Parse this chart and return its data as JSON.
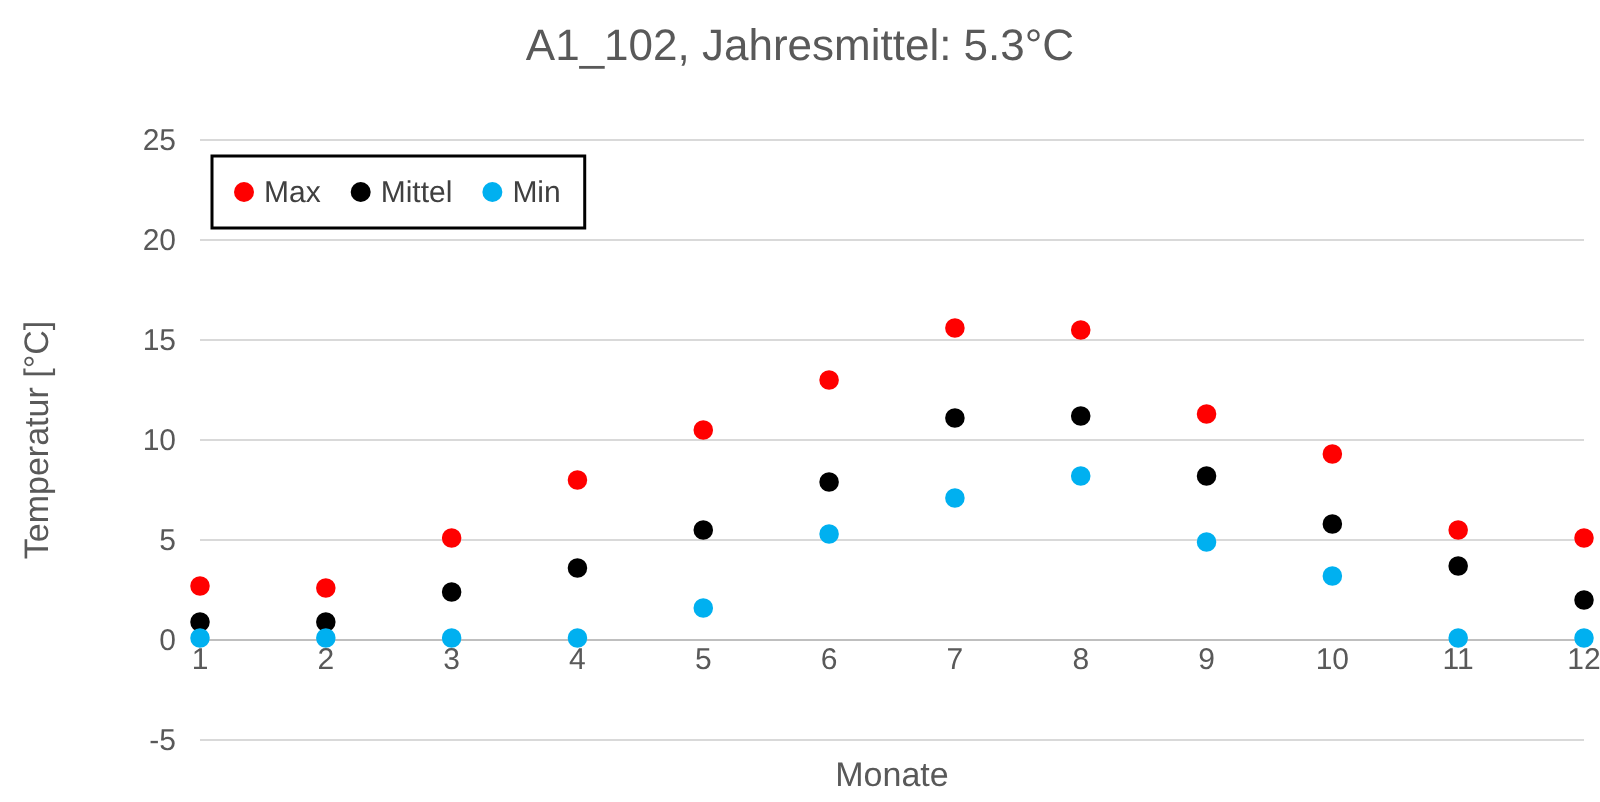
{
  "chart_data": {
    "type": "scatter",
    "title": "A1_102, Jahresmittel: 5.3°C",
    "xlabel": "Monate",
    "ylabel": "Temperatur [°C]",
    "x": [
      1,
      2,
      3,
      4,
      5,
      6,
      7,
      8,
      9,
      10,
      11,
      12
    ],
    "series": [
      {
        "name": "Max",
        "color": "#ff0000",
        "values": [
          2.7,
          2.6,
          5.1,
          8.0,
          10.5,
          13.0,
          15.6,
          15.5,
          11.3,
          9.3,
          5.5,
          5.1
        ]
      },
      {
        "name": "Mittel",
        "color": "#000000",
        "values": [
          0.9,
          0.9,
          2.4,
          3.6,
          5.5,
          7.9,
          11.1,
          11.2,
          8.2,
          5.8,
          3.7,
          2.0
        ]
      },
      {
        "name": "Min",
        "color": "#00b0f0",
        "values": [
          0.1,
          0.1,
          0.1,
          0.1,
          1.6,
          5.3,
          7.1,
          8.2,
          4.9,
          3.2,
          0.1,
          0.1
        ]
      }
    ],
    "xlim": [
      1,
      12
    ],
    "xticks": [
      1,
      2,
      3,
      4,
      5,
      6,
      7,
      8,
      9,
      10,
      11,
      12
    ],
    "ylim": [
      -5,
      25
    ],
    "yticks": [
      -5,
      0,
      5,
      10,
      15,
      20,
      25
    ],
    "grid": "y",
    "legend": "top left",
    "marker": "circle"
  }
}
